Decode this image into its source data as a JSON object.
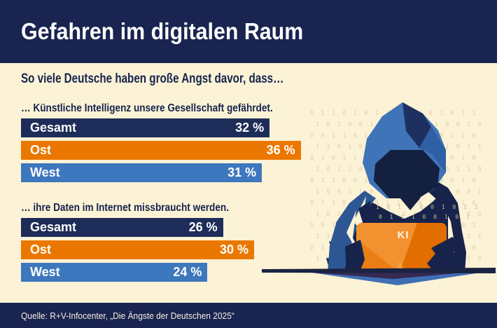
{
  "header": {
    "title": "Gefahren im digitalen Raum"
  },
  "subtitle": "So viele Deutsche haben große Angst davor, dass…",
  "chart_data": [
    {
      "type": "bar",
      "title": "… Künstliche Intelligenz unsere Gesellschaft gefährdet.",
      "categories": [
        "Gesamt",
        "Ost",
        "West"
      ],
      "values": [
        32,
        36,
        31
      ],
      "value_labels": [
        "32 %",
        "36 %",
        "31 %"
      ],
      "unit": "%",
      "xlim": [
        0,
        40
      ],
      "orientation": "horizontal",
      "bar_colors": [
        "#1d2c58",
        "#ea7800",
        "#3d77bd"
      ]
    },
    {
      "type": "bar",
      "title": "… ihre Daten im Internet missbraucht werden.",
      "categories": [
        "Gesamt",
        "Ost",
        "West"
      ],
      "values": [
        26,
        30,
        24
      ],
      "value_labels": [
        "26 %",
        "30 %",
        "24 %"
      ],
      "unit": "%",
      "xlim": [
        0,
        40
      ],
      "orientation": "horizontal",
      "bar_colors": [
        "#1d2c58",
        "#ea7800",
        "#3d77bd"
      ]
    }
  ],
  "illustration": {
    "laptop_label": "KI",
    "binary_rows": [
      "0 1  1 0 1  0 1 1 0  1 0 0 1  0 1 1",
      "1 0 1  0 0 1 1  0 1 0 1  1 0  0 1 0",
      "0 0 1 1  0 1 0  1 1 0 0  1 0 1  1 0",
      "1 1 0  1 0 0 1  0 1 1 0  0 1 0 1  1",
      "0 1 0 1  1 0 0 1 1  0 1 0  1 0 1 0",
      "1 0 1 1  0 1 1 0  1 0 0 1  0 1 1 0",
      "0 1 1 0 0  1 0 1  1 0 1 1  0 0 1 0",
      "1 0 0 1  1 0 1 0  0 1 1 0  1 0 0 1",
      "0 1 1 0 1  0 0 1  1 0 0 1 0  1 1 0",
      "1 0 1 0  0 1 1 0  1 1 0 1  0 1 0 0",
      "0 0 1 1 0  1 0 1 1  0 1 0 0  1 0 1",
      "1 1 0 0 1  0 1 0  1 0 1 1 0  0 1 1",
      "0 1 0 1 1  0 0 1 0  1 1 0 1  0 1 0",
      "1 0 1 0 0  1 1 0 1  0 0 1 0  1 1 0"
    ],
    "chest_rows": [
      "1 0 1 1 0 0 1 0 1 1",
      "0 1 1 1 0 0 1 0 1"
    ]
  },
  "footer": {
    "source": "Quelle: R+V-Infocenter, „Die Ängste der Deutschen 2025“"
  },
  "colors": {
    "background": "#fcf2d5",
    "band_navy": "#192450",
    "bar_navy": "#1d2c58",
    "bar_orange": "#ea7800",
    "bar_blue": "#3d77bd",
    "text_navy": "#16244e",
    "hood_blue": "#3f74b8",
    "laptop_orange": "#f29130"
  }
}
